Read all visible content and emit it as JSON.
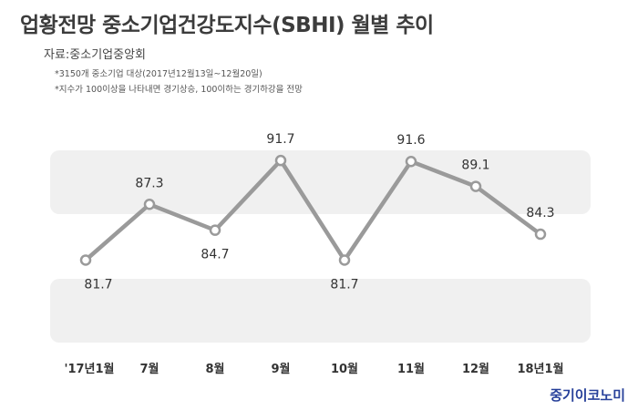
{
  "header": {
    "title": "업황전망 중소기업건강도지수(SBHI) 월별 추이",
    "source": "자료:중소기업중앙회",
    "notes": [
      "*3150개 중소기업 대상(2017년12월13일~12월20일)",
      "*지수가 100이상을 나타내면 경기상승, 100이하는 경기하강을 전망"
    ]
  },
  "brand": "중기이코노미",
  "chart_data": {
    "type": "line",
    "title": "업황전망 중소기업건강도지수(SBHI) 월별 추이",
    "xlabel": "",
    "ylabel": "",
    "categories": [
      "'17년1월",
      "7월",
      "8월",
      "9월",
      "10월",
      "11월",
      "12월",
      "18년1월"
    ],
    "values": [
      81.7,
      87.3,
      84.7,
      91.7,
      81.7,
      91.6,
      89.1,
      84.3
    ],
    "labels": [
      "81.7",
      "87.3",
      "84.7",
      "91.7",
      "81.7",
      "91.6",
      "89.1",
      "84.3"
    ],
    "label_positions": [
      "below",
      "above",
      "below",
      "above",
      "below",
      "above",
      "above",
      "above"
    ],
    "ylim": [
      79,
      94
    ],
    "grid": false,
    "legend": "none",
    "colors": {
      "line": "#9a9a9a",
      "marker_fill": "#ffffff",
      "band": "#f0f0f0",
      "brand": "#27409a"
    }
  }
}
